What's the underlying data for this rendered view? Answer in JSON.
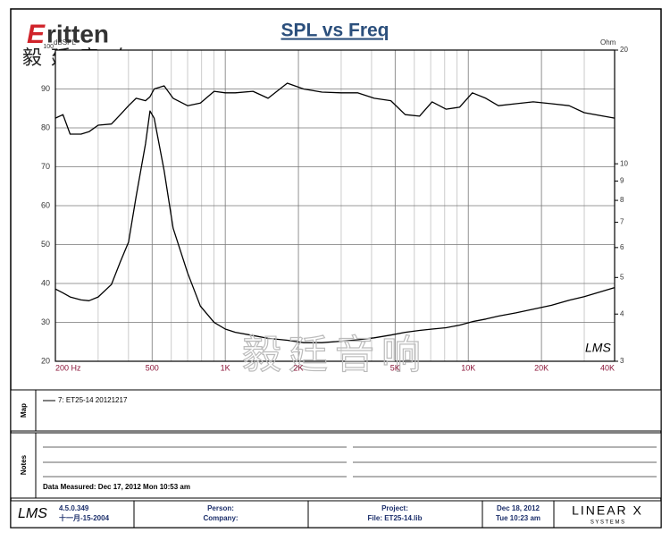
{
  "chart_data": {
    "type": "line",
    "title": "SPL vs Freq",
    "ylabel": "dBSPL",
    "y2label": "Ohm",
    "xscale": "log",
    "y2scale": "log",
    "grid": true,
    "color": "#000000",
    "x": [
      200,
      215,
      230,
      255,
      275,
      300,
      340,
      370,
      400,
      430,
      470,
      490,
      510,
      560,
      610,
      700,
      790,
      900,
      1000,
      1100,
      1300,
      1500,
      1800,
      2100,
      2500,
      3000,
      3500,
      4100,
      4800,
      5500,
      6300,
      7100,
      8100,
      9200,
      10400,
      11800,
      13300,
      15700,
      18500,
      22000,
      26000,
      30000,
      40000
    ],
    "series": [
      {
        "name": "7: ET25-14 20121217",
        "color": "#000000",
        "axis": "y",
        "values": [
          82.5,
          83.4,
          78.4,
          78.4,
          79,
          80.7,
          81,
          83.4,
          85.7,
          87.6,
          87,
          88,
          90,
          90.8,
          87.6,
          85.7,
          86.4,
          89.4,
          89,
          89,
          89.4,
          87.6,
          91.5,
          90,
          89.2,
          89,
          89,
          87.6,
          87,
          83.4,
          83,
          86.7,
          84.8,
          85.3,
          89,
          87.6,
          85.7,
          86.2,
          86.7,
          86.2,
          85.7,
          83.9,
          82.5
        ]
      },
      {
        "color": "#000000",
        "axis": "y2",
        "values": [
          4.66,
          4.55,
          4.44,
          4.36,
          4.34,
          4.44,
          4.79,
          5.5,
          6.2,
          8.2,
          11.3,
          13.8,
          13.2,
          9.6,
          6.75,
          5.14,
          4.2,
          3.8,
          3.65,
          3.58,
          3.51,
          3.45,
          3.41,
          3.36,
          3.36,
          3.39,
          3.42,
          3.46,
          3.52,
          3.58,
          3.62,
          3.65,
          3.68,
          3.74,
          3.82,
          3.88,
          3.95,
          4.03,
          4.12,
          4.22,
          4.35,
          4.45,
          4.7
        ]
      }
    ],
    "xlim": [
      200,
      40000
    ],
    "xticks": [
      {
        "value": 200,
        "label": "200  Hz"
      },
      500,
      {
        "value": 1000,
        "label": "1K"
      },
      {
        "value": 2000,
        "label": "2K"
      },
      {
        "value": 5000,
        "label": "5K"
      },
      {
        "value": 10000,
        "label": "10K"
      },
      {
        "value": 20000,
        "label": "20K"
      },
      {
        "value": 40000,
        "label": "40K"
      }
    ],
    "xminor": [
      300,
      400,
      600,
      700,
      800,
      900,
      3000,
      4000,
      6000,
      7000,
      8000,
      9000,
      30000
    ],
    "ylim": [
      20,
      100
    ],
    "yticks": [
      20,
      30,
      40,
      50,
      60,
      70,
      80,
      90,
      100
    ],
    "y2lim": [
      3,
      20
    ],
    "y2ticks": [
      3,
      4,
      5,
      6,
      7,
      8,
      9,
      10,
      20
    ]
  },
  "logo": {
    "brand": "ritten",
    "brand_initial": "E",
    "chinese": "毅廷音响",
    "watermark": "毅廷音响",
    "plot_mark": "LMS"
  },
  "map_panel": {
    "label": "Map"
  },
  "notes_panel": {
    "label": "Notes",
    "measured": "Data Measured: Dec 17, 2012  Mon 10:53 am"
  },
  "footer": {
    "logo": "LMS",
    "version": "4.5.0.349",
    "version_date": "十一月-15-2004",
    "person": "Person:",
    "company": "Company:",
    "project": "Project:",
    "file": "File: ET25-14.lib",
    "date": "Dec 18, 2012",
    "time": "Tue 10:23 am",
    "vendor": "LINEAR X",
    "vendor_sub": "S Y S T E M S"
  }
}
